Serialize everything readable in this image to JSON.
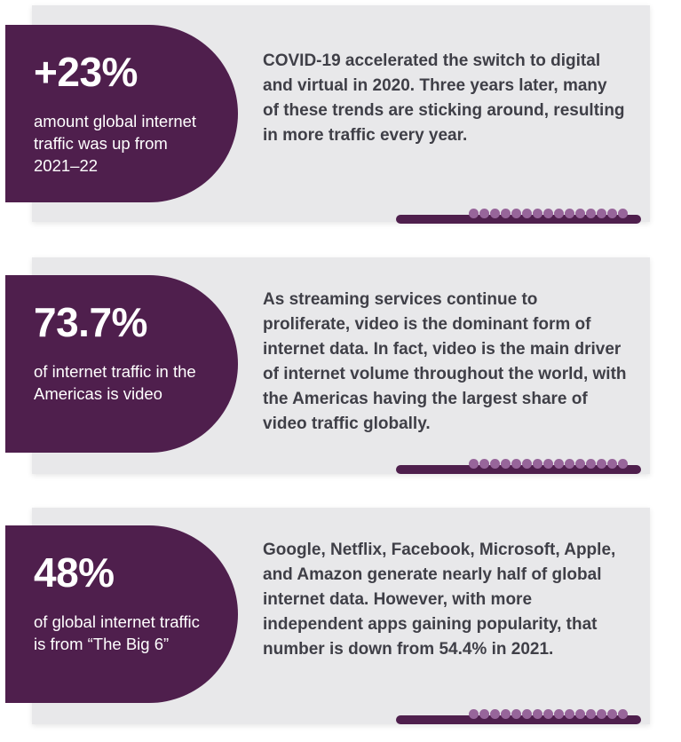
{
  "colors": {
    "card_bg": "#e8e8ea",
    "accent_purple": "#4f1f4d",
    "dot_purple": "#97659a",
    "body_text": "#3f3f47"
  },
  "items": [
    {
      "value": "+23%",
      "caption": "amount global internet traffic was up from 2021–22",
      "description": "COVID-19 accelerated the switch to digital and virtual in 2020. Three years later, many of these trends are sticking around, resulting in more traffic every year."
    },
    {
      "value": "73.7%",
      "caption": "of internet traffic in the Americas is video",
      "description": "As streaming services continue to proliferate, video is the dominant form of internet data. In fact, video is the main driver of internet volume throughout the world, with the Americas having the largest share of video traffic globally."
    },
    {
      "value": "48%",
      "caption": "of global internet traffic is from “The Big 6”",
      "description": "Google, Netflix, Facebook, Microsoft, Apple, and Amazon generate nearly half of global internet data. However, with more independent apps gaining popularity, that number is down from 54.4% in 2021."
    }
  ]
}
